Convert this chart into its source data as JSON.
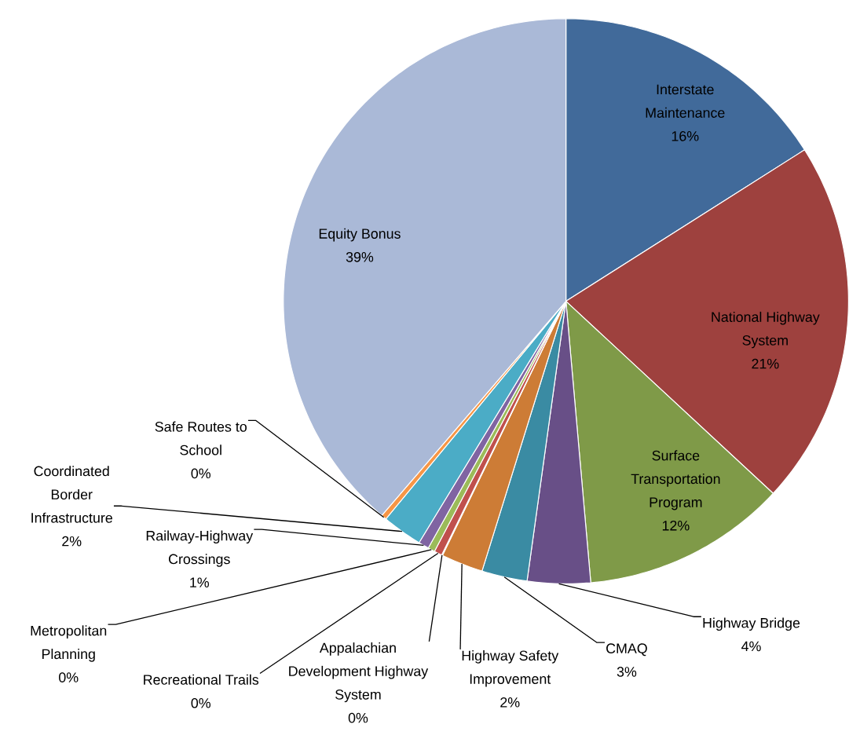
{
  "chart_data": {
    "type": "pie",
    "categories": [
      "Interstate Maintenance",
      "National Highway System",
      "Surface Transportation Program",
      "Highway Bridge",
      "CMAQ",
      "Highway Safety Improvement",
      "Appalachian Development Highway System",
      "Recreational Trails",
      "Metropolitan Planning",
      "Railway-Highway Crossings",
      "Coordinated Border Infrastructure",
      "Safe Routes to School",
      "Equity Bonus"
    ],
    "values": [
      16.0,
      20.9,
      11.7,
      3.6,
      2.6,
      2.4,
      0.05,
      0.45,
      0.4,
      0.6,
      2.3,
      0.3,
      38.7
    ],
    "value_labels": [
      "16%",
      "21%",
      "12%",
      "4%",
      "3%",
      "2%",
      "0%",
      "0%",
      "0%",
      "1%",
      "2%",
      "0%",
      "39%"
    ],
    "colors": [
      "#416a9a",
      "#9e413e",
      "#7f9a48",
      "#684f87",
      "#3a8ba3",
      "#cd7c36",
      "#4f81bd",
      "#c0504d",
      "#9bbb59",
      "#8064a2",
      "#4bacc6",
      "#f79646",
      "#aab9d7"
    ]
  }
}
